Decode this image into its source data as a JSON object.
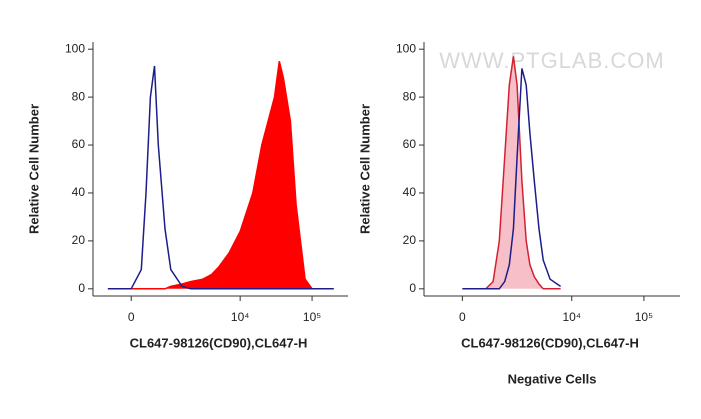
{
  "chart_data": [
    {
      "type": "area",
      "xlabel": "CL647-98126(CD90),CL647-H",
      "ylabel": "Relative Cell Number",
      "xscale": "biexponential",
      "xlim": [
        -950,
        316000
      ],
      "ylim": [
        -3,
        103
      ],
      "xticks": [
        0,
        {
          "value": 10000,
          "label": "10⁴"
        },
        {
          "value": 100000,
          "label": "10⁵"
        }
      ],
      "yticks": [
        0,
        20,
        40,
        60,
        80,
        100
      ],
      "x": [
        -500,
        0,
        200,
        300,
        400,
        500,
        600,
        800,
        1000,
        1500,
        2000,
        3000,
        4000,
        5000,
        7000,
        10000,
        15000,
        20000,
        30000,
        35000,
        40000,
        50000,
        60000,
        80000,
        100000,
        150000,
        200000
      ],
      "series": [
        {
          "color": "#ff0000",
          "fill_color": "#ff0000",
          "values": [
            0,
            0,
            0,
            0,
            0,
            0,
            0,
            0,
            1,
            2,
            3,
            4,
            6,
            9,
            15,
            24,
            40,
            60,
            80,
            95,
            88,
            70,
            35,
            4,
            0,
            0,
            0
          ]
        },
        {
          "color": "#1c1c8a",
          "fill_color": null,
          "values": [
            0,
            0,
            8,
            40,
            80,
            93,
            60,
            25,
            8,
            1,
            0,
            0,
            0,
            0,
            0,
            0,
            0,
            0,
            0,
            0,
            0,
            0,
            0,
            0,
            0,
            0,
            0
          ]
        }
      ]
    },
    {
      "type": "area",
      "xlabel": "CL647-98126(CD90),CL647-H",
      "ylabel": "Relative Cell Number",
      "subtitle": "Negative Cells",
      "watermark": "WWW.PTGLAB.COM",
      "xscale": "biexponential",
      "xlim": [
        -950,
        316000
      ],
      "ylim": [
        -3,
        103
      ],
      "xticks": [
        0,
        {
          "value": 10000,
          "label": "10⁴"
        },
        {
          "value": 100000,
          "label": "10⁵"
        }
      ],
      "yticks": [
        0,
        20,
        40,
        60,
        80,
        100
      ],
      "x": [
        0,
        300,
        500,
        700,
        900,
        1100,
        1300,
        1500,
        1700,
        2000,
        2300,
        2600,
        3000,
        3500,
        4000,
        5000,
        7000
      ],
      "series": [
        {
          "color": "#d42030",
          "fill_color": "#f7c0c8",
          "values": [
            0,
            0,
            0,
            3,
            20,
            55,
            85,
            97,
            85,
            45,
            20,
            10,
            5,
            2,
            0,
            0,
            0
          ]
        },
        {
          "color": "#1c1c8a",
          "fill_color": null,
          "values": [
            0,
            0,
            0,
            0,
            0,
            3,
            10,
            25,
            55,
            92,
            85,
            65,
            45,
            25,
            12,
            4,
            1
          ]
        }
      ]
    }
  ]
}
